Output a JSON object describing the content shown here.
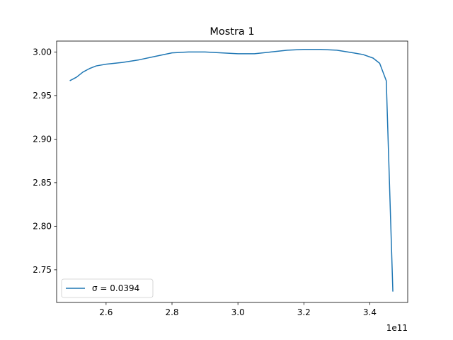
{
  "chart_data": {
    "type": "line",
    "title": "Mostra 1",
    "xlabel": "",
    "ylabel": "",
    "x_offset_label": "1e11",
    "xlim": [
      245000000000.0,
      351500000000.0
    ],
    "ylim": [
      2.7125,
      3.0125
    ],
    "xticks": [
      260000000000.0,
      280000000000.0,
      300000000000.0,
      320000000000.0,
      340000000000.0
    ],
    "xtick_labels": [
      "2.6",
      "2.8",
      "3.0",
      "3.2",
      "3.4"
    ],
    "yticks": [
      2.75,
      2.8,
      2.85,
      2.9,
      2.95,
      3.0
    ],
    "ytick_labels": [
      "2.75",
      "2.80",
      "2.85",
      "2.90",
      "2.95",
      "3.00"
    ],
    "grid": false,
    "legend_position": "lower-left",
    "series": [
      {
        "name": "σ = 0.0394",
        "color": "#1f77b4",
        "x": [
          249000000000.0,
          251000000000.0,
          253000000000.0,
          255000000000.0,
          257000000000.0,
          260000000000.0,
          265000000000.0,
          270000000000.0,
          275000000000.0,
          280000000000.0,
          285000000000.0,
          290000000000.0,
          295000000000.0,
          300000000000.0,
          305000000000.0,
          310000000000.0,
          315000000000.0,
          320000000000.0,
          325000000000.0,
          330000000000.0,
          335000000000.0,
          338000000000.0,
          341000000000.0,
          343000000000.0,
          345000000000.0,
          347000000000.0
        ],
        "y": [
          2.967,
          2.971,
          2.977,
          2.981,
          2.984,
          2.986,
          2.988,
          2.991,
          2.995,
          2.999,
          3.0,
          3.0,
          2.999,
          2.998,
          2.998,
          3.0,
          3.002,
          3.003,
          3.003,
          3.002,
          2.999,
          2.997,
          2.993,
          2.987,
          2.967,
          2.725
        ]
      }
    ]
  }
}
